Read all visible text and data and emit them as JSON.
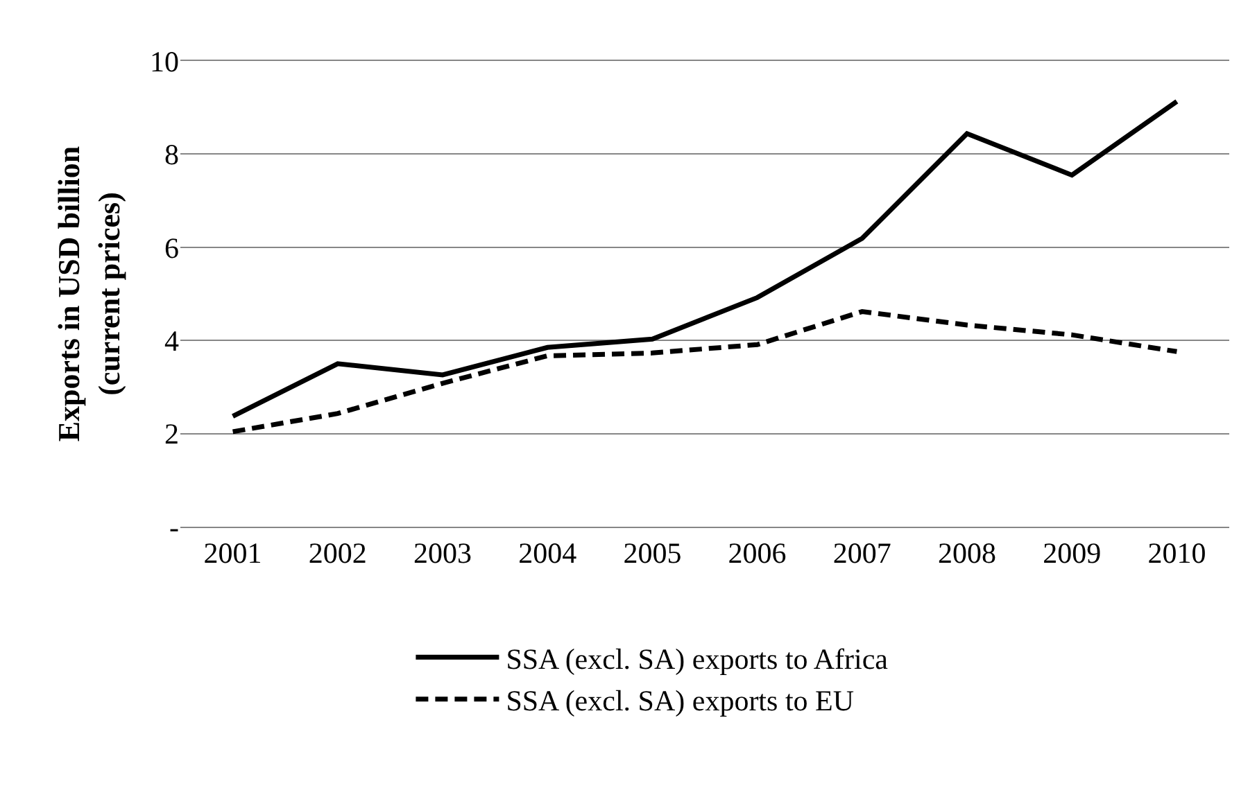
{
  "chart_data": {
    "type": "line",
    "ylabel": "Exports in USD billion\n(current prices)",
    "categories": [
      "2001",
      "2002",
      "2003",
      "2004",
      "2005",
      "2006",
      "2007",
      "2008",
      "2009",
      "2010"
    ],
    "series": [
      {
        "name": "SSA (excl. SA) exports to Africa",
        "color": "#000000",
        "line_style": "solid",
        "values": [
          2.37,
          3.5,
          3.26,
          3.85,
          4.03,
          4.92,
          6.19,
          8.44,
          7.55,
          9.13
        ]
      },
      {
        "name": "SSA (excl. SA) exports to EU",
        "color": "#000000",
        "line_style": "dashed",
        "values": [
          2.04,
          2.43,
          3.08,
          3.67,
          3.73,
          3.91,
          4.62,
          4.33,
          4.12,
          3.76
        ]
      }
    ],
    "ylim": [
      0,
      10
    ],
    "yticks": [
      {
        "value": 0,
        "label": "-"
      },
      2,
      4,
      6,
      8,
      10
    ],
    "grid": "y",
    "legend": "bottom",
    "marker": "none"
  }
}
